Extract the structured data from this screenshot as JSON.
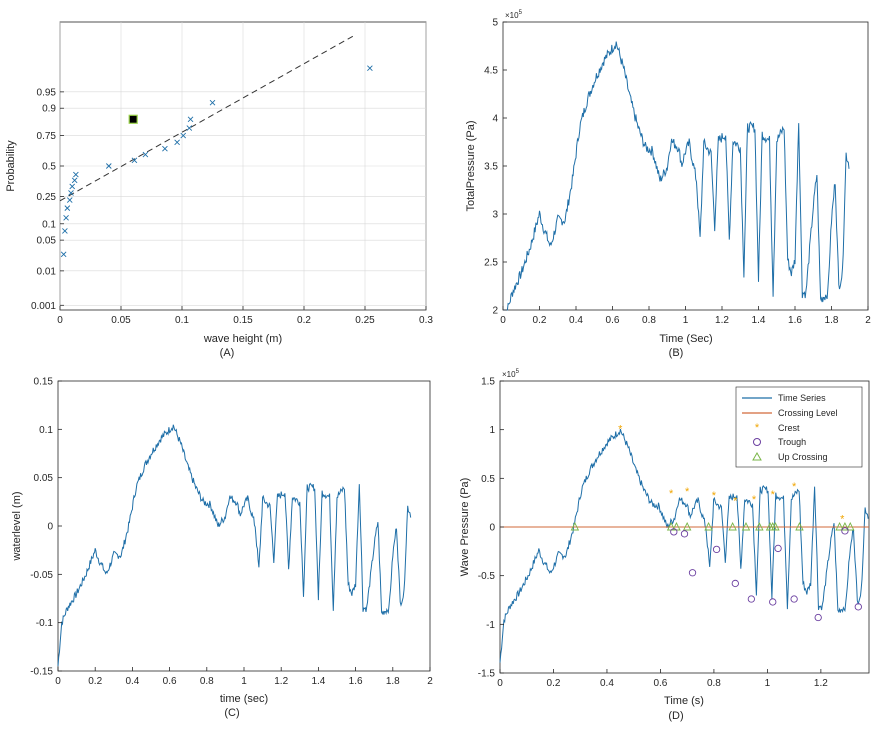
{
  "colors": {
    "series": "#1f6fa8",
    "dashed": "#333333",
    "grid": "#d9d9d9",
    "crossing": "#d2693a",
    "crest": "#f0a500",
    "trough": "#6b3fa0",
    "upcross": "#7ab648",
    "marker_fill": "#000000",
    "marker_edge": "#9bd34a"
  },
  "chart_data": [
    {
      "id": "A",
      "type": "scatter",
      "panel_label": "(A)",
      "xlabel": "wave height (m)",
      "ylabel": "Probability",
      "xlim": [
        0,
        0.3
      ],
      "xticks": [
        0,
        0.05,
        0.1,
        0.15,
        0.2,
        0.25,
        0.3
      ],
      "xtick_labels": [
        "0",
        "0.05",
        "0.1",
        "0.15",
        "0.2",
        "0.25",
        "0.3"
      ],
      "yticks": [
        0.001,
        0.01,
        0.05,
        0.1,
        0.25,
        0.5,
        0.75,
        0.9,
        0.95
      ],
      "ytick_labels": [
        "0.001",
        "0.01",
        "0.05",
        "0.1",
        "0.25",
        "0.5",
        "0.75",
        "0.9",
        "0.95"
      ],
      "yscale": "normal-probability",
      "points": [
        {
          "x": 0.003,
          "p": 0.025
        },
        {
          "x": 0.004,
          "p": 0.075
        },
        {
          "x": 0.005,
          "p": 0.125
        },
        {
          "x": 0.006,
          "p": 0.175
        },
        {
          "x": 0.008,
          "p": 0.225
        },
        {
          "x": 0.009,
          "p": 0.275
        },
        {
          "x": 0.01,
          "p": 0.325
        },
        {
          "x": 0.012,
          "p": 0.375
        },
        {
          "x": 0.013,
          "p": 0.425
        },
        {
          "x": 0.04,
          "p": 0.5
        },
        {
          "x": 0.061,
          "p": 0.55
        },
        {
          "x": 0.07,
          "p": 0.6
        },
        {
          "x": 0.086,
          "p": 0.65
        },
        {
          "x": 0.096,
          "p": 0.7
        },
        {
          "x": 0.101,
          "p": 0.75
        },
        {
          "x": 0.106,
          "p": 0.8
        },
        {
          "x": 0.107,
          "p": 0.85
        },
        {
          "x": 0.125,
          "p": 0.92
        },
        {
          "x": 0.254,
          "p": 0.985
        }
      ],
      "fit_line": [
        {
          "x": 0.0,
          "p": 0.22
        },
        {
          "x": 0.24,
          "p": 0.998
        }
      ],
      "highlight": {
        "x": 0.06,
        "p": 0.85
      }
    },
    {
      "id": "B",
      "type": "line",
      "panel_label": "(B)",
      "xlabel": "Time (Sec)",
      "ylabel": "TotalPressure (Pa)",
      "exponent": "×10",
      "exponent_power": "5",
      "xlim": [
        0,
        2
      ],
      "ylim": [
        2,
        5
      ],
      "xticks": [
        0,
        0.2,
        0.4,
        0.6,
        0.8,
        1,
        1.2,
        1.4,
        1.6,
        1.8,
        2
      ],
      "xtick_labels": [
        "0",
        "0.2",
        "0.4",
        "0.6",
        "0.8",
        "1",
        "1.2",
        "1.4",
        "1.6",
        "1.8",
        "2"
      ],
      "yticks": [
        2,
        2.5,
        3,
        3.5,
        4,
        4.5,
        5
      ],
      "ytick_labels": [
        "2",
        "2.5",
        "3",
        "3.5",
        "4",
        "4.5",
        "5"
      ]
    },
    {
      "id": "C",
      "type": "line",
      "panel_label": "(C)",
      "xlabel": "time (sec)",
      "ylabel": "waterlevel (m)",
      "xlim": [
        0,
        2
      ],
      "ylim": [
        -0.15,
        0.15
      ],
      "xticks": [
        0,
        0.2,
        0.4,
        0.6,
        0.8,
        1,
        1.2,
        1.4,
        1.6,
        1.8,
        2
      ],
      "xtick_labels": [
        "0",
        "0.2",
        "0.4",
        "0.6",
        "0.8",
        "1",
        "1.2",
        "1.4",
        "1.6",
        "1.8",
        "2"
      ],
      "yticks": [
        -0.15,
        -0.1,
        -0.05,
        0,
        0.05,
        0.1,
        0.15
      ],
      "ytick_labels": [
        "-0.15",
        "-0.1",
        "-0.05",
        "0",
        "0.05",
        "0.1",
        "0.15"
      ]
    },
    {
      "id": "D",
      "type": "line",
      "panel_label": "(D)",
      "xlabel": "Time (s)",
      "ylabel": "Wave Pressure (Pa)",
      "exponent": "×10",
      "exponent_power": "5",
      "xlim": [
        0,
        1.38
      ],
      "ylim": [
        -1.5,
        1.5
      ],
      "xticks": [
        0,
        0.2,
        0.4,
        0.6,
        0.8,
        1,
        1.2
      ],
      "xtick_labels": [
        "0",
        "0.2",
        "0.4",
        "0.6",
        "0.8",
        "1",
        "1.2"
      ],
      "yticks": [
        -1.5,
        -1,
        -0.5,
        0,
        0.5,
        1,
        1.5
      ],
      "ytick_labels": [
        "-1.5",
        "-1",
        "-0.5",
        "0",
        "0.5",
        "1",
        "1.5"
      ],
      "legend": [
        "Time Series",
        "Crossing Level",
        "Crest",
        "Trough",
        "Up Crossing"
      ],
      "crests": [
        {
          "x": 0.45,
          "y": 1.02
        },
        {
          "x": 0.64,
          "y": 0.36
        },
        {
          "x": 0.7,
          "y": 0.38
        },
        {
          "x": 0.8,
          "y": 0.34
        },
        {
          "x": 0.88,
          "y": 0.28
        },
        {
          "x": 0.95,
          "y": 0.3
        },
        {
          "x": 1.02,
          "y": 0.35
        },
        {
          "x": 1.1,
          "y": 0.43
        },
        {
          "x": 1.28,
          "y": 0.1
        }
      ],
      "troughs": [
        {
          "x": 0.65,
          "y": -0.05
        },
        {
          "x": 0.69,
          "y": -0.07
        },
        {
          "x": 0.72,
          "y": -0.47
        },
        {
          "x": 0.81,
          "y": -0.23
        },
        {
          "x": 0.88,
          "y": -0.58
        },
        {
          "x": 0.94,
          "y": -0.74
        },
        {
          "x": 1.02,
          "y": -0.77
        },
        {
          "x": 1.04,
          "y": -0.22
        },
        {
          "x": 1.1,
          "y": -0.74
        },
        {
          "x": 1.19,
          "y": -0.93
        },
        {
          "x": 1.29,
          "y": -0.04
        },
        {
          "x": 1.34,
          "y": -0.82
        }
      ],
      "upcrossings": [
        0.28,
        0.64,
        0.66,
        0.7,
        0.78,
        0.87,
        0.92,
        0.97,
        1.01,
        1.02,
        1.03,
        1.12,
        1.27,
        1.29,
        1.31
      ]
    }
  ],
  "waveform": {
    "t": [
      0,
      0.02,
      0.05,
      0.1,
      0.15,
      0.2,
      0.22,
      0.26,
      0.3,
      0.34,
      0.38,
      0.42,
      0.46,
      0.5,
      0.55,
      0.6,
      0.62,
      0.66,
      0.7,
      0.74,
      0.78,
      0.82,
      0.86,
      0.9,
      0.92,
      0.96,
      0.98,
      1.0,
      1.02,
      1.06,
      1.08,
      1.1,
      1.14,
      1.16,
      1.18,
      1.22,
      1.24,
      1.26,
      1.3,
      1.32,
      1.34,
      1.38,
      1.4,
      1.42,
      1.46,
      1.48,
      1.5,
      1.54,
      1.56,
      1.58,
      1.6,
      1.62,
      1.64,
      1.66,
      1.7,
      1.72,
      1.74,
      1.78,
      1.8,
      1.82,
      1.84,
      1.86,
      1.88,
      1.9
    ],
    "level": [
      -0.145,
      -0.1,
      -0.085,
      -0.07,
      -0.05,
      -0.025,
      -0.035,
      -0.05,
      -0.03,
      -0.03,
      0.0,
      0.04,
      0.06,
      0.075,
      0.09,
      0.1,
      0.104,
      0.085,
      0.06,
      0.04,
      0.025,
      0.022,
      0.0,
      0.01,
      0.03,
      0.025,
      0.012,
      0.022,
      0.028,
      0.0,
      -0.045,
      0.028,
      0.02,
      -0.035,
      0.03,
      0.035,
      -0.045,
      0.03,
      0.025,
      -0.07,
      0.04,
      0.04,
      -0.075,
      0.035,
      0.03,
      -0.085,
      0.03,
      0.04,
      -0.06,
      -0.07,
      -0.06,
      0.045,
      -0.085,
      -0.085,
      -0.02,
      0.005,
      -0.09,
      -0.085,
      -0.03,
      0.0,
      -0.08,
      -0.07,
      0.02,
      0.01
    ]
  }
}
